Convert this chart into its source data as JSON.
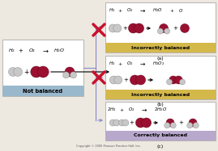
{
  "bg_color": "#ede8e0",
  "copyright": "Copyright © 2005 Pearson Prentice Hall, Inc.",
  "not_balanced_label": "Not balanced",
  "panel_a_label": "Incorrectly balanced",
  "panel_a_sub": "(a)",
  "panel_b_label": "Incorrectly balanced",
  "panel_b_sub": "(b)",
  "panel_c_label": "Correctly balanced",
  "panel_c_sub": "(c)",
  "red_x": "#c8102e",
  "h_color": "#c8c8c8",
  "h_edge": "#888888",
  "o_color": "#9b1030",
  "o_edge": "#5a0018",
  "nb_bar_color": "#9ab8cc",
  "pa_bar_color": "#d4b84a",
  "pb_bar_color": "#d4b84a",
  "pc_bar_color": "#b8a8cc",
  "panel_bg": "#ffffff",
  "connector_color": "#8888cc",
  "arrow_color": "#555555"
}
